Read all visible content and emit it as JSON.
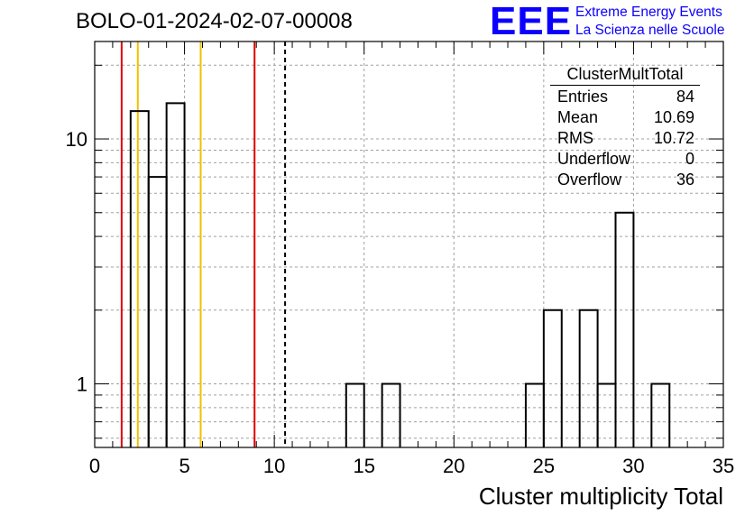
{
  "title": "BOLO-01-2024-02-07-00008",
  "logo": {
    "mark": "EEE",
    "line1": "Extreme Energy Events",
    "line2": "La Scienza nelle Scuole",
    "color": "#0b00ff"
  },
  "stats_box": {
    "title": "ClusterMultTotal",
    "rows": [
      {
        "label": "Entries",
        "value": "84"
      },
      {
        "label": "Mean",
        "value": "10.69"
      },
      {
        "label": "RMS",
        "value": "10.72"
      },
      {
        "label": "Underflow",
        "value": "0"
      },
      {
        "label": "Overflow",
        "value": "36"
      }
    ]
  },
  "chart_data": {
    "type": "histogram",
    "title": "",
    "xlabel": "Cluster multiplicity Total",
    "ylabel": "",
    "xlim": [
      0,
      35
    ],
    "ylim": [
      0.55,
      25
    ],
    "yscale": "log",
    "grid": true,
    "x_ticks": [
      0,
      5,
      10,
      15,
      20,
      25,
      30,
      35
    ],
    "y_ticks": [
      1,
      10
    ],
    "bin_width": 1,
    "bins": [
      {
        "x": 2.5,
        "count": 13
      },
      {
        "x": 3.5,
        "count": 7
      },
      {
        "x": 4.5,
        "count": 14
      },
      {
        "x": 14.5,
        "count": 1
      },
      {
        "x": 16.5,
        "count": 1
      },
      {
        "x": 24.5,
        "count": 1
      },
      {
        "x": 25.5,
        "count": 2
      },
      {
        "x": 27.5,
        "count": 2
      },
      {
        "x": 28.5,
        "count": 1
      },
      {
        "x": 29.5,
        "count": 5
      },
      {
        "x": 31.5,
        "count": 1
      }
    ],
    "vertical_markers": [
      {
        "x": 1.5,
        "color": "#e00000",
        "style": "solid"
      },
      {
        "x": 8.9,
        "color": "#e00000",
        "style": "solid"
      },
      {
        "x": 2.4,
        "color": "#f0c000",
        "style": "solid"
      },
      {
        "x": 5.9,
        "color": "#f0c000",
        "style": "solid"
      },
      {
        "x": 10.6,
        "color": "#000000",
        "style": "dashed"
      }
    ],
    "line_color": "#000000"
  }
}
